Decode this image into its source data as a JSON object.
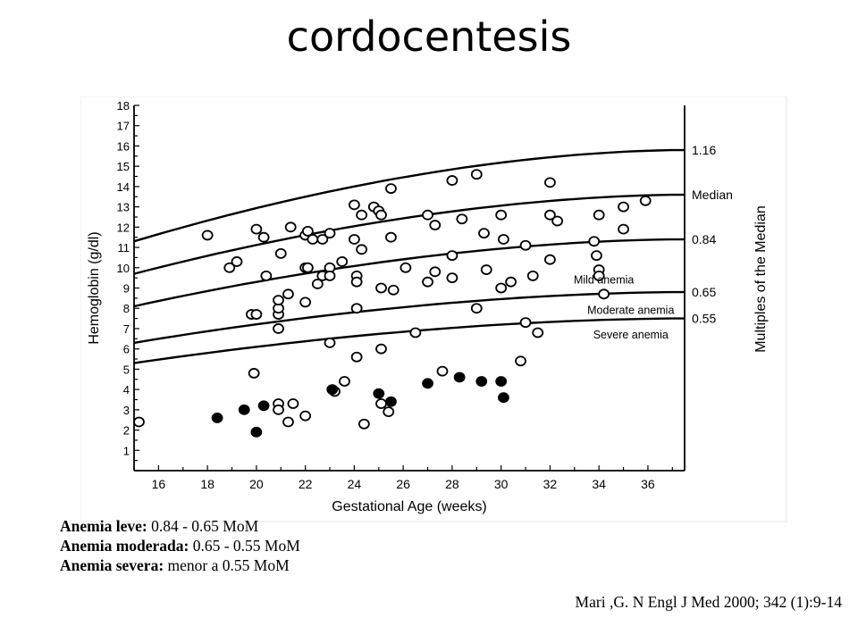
{
  "slide": {
    "title": "cordocentesis",
    "notes": [
      {
        "label": "Anemia leve:",
        "value": " 0.84 - 0.65 MoM"
      },
      {
        "label": "Anemia moderada:",
        "value": " 0.65 - 0.55 MoM"
      },
      {
        "label": "Anemia severa:",
        "value": " menor a 0.55 MoM"
      }
    ],
    "citation": "Mari ,G. N Engl J Med 2000; 342 (1):9-14"
  },
  "chart_data": {
    "type": "scatter",
    "xlabel": "Gestational Age (weeks)",
    "ylabel": "Hemoglobin (g/dl)",
    "y2label": "Multiples of the Median",
    "xlim": [
      15,
      37.5
    ],
    "ylim": [
      0,
      18
    ],
    "xticks": [
      16,
      18,
      20,
      22,
      24,
      26,
      28,
      30,
      32,
      34,
      36
    ],
    "yticks": [
      1,
      2,
      3,
      4,
      5,
      6,
      7,
      8,
      9,
      10,
      11,
      12,
      13,
      14,
      15,
      16,
      17,
      18
    ],
    "grid": false,
    "curves": [
      {
        "label": "1.16",
        "x": [
          15,
          37.5
        ],
        "y": [
          11.3,
          15.8
        ]
      },
      {
        "label": "Median",
        "x": [
          15,
          37.5
        ],
        "y": [
          9.7,
          13.6
        ]
      },
      {
        "label": "0.84",
        "x": [
          15,
          37.5
        ],
        "y": [
          8.1,
          11.4
        ]
      },
      {
        "label": "0.65",
        "x": [
          15,
          37.5
        ],
        "y": [
          6.3,
          8.8
        ]
      },
      {
        "label": "0.55",
        "x": [
          15,
          37.5
        ],
        "y": [
          5.3,
          7.5
        ]
      }
    ],
    "zone_labels": [
      {
        "text": "Mild anemia",
        "x": 34.2,
        "y": 9.4
      },
      {
        "text": "Moderate anemia",
        "x": 35.3,
        "y": 7.9
      },
      {
        "text": "Severe anemia",
        "x": 35.3,
        "y": 6.7
      }
    ],
    "series": [
      {
        "marker": "open",
        "points": [
          [
            15.2,
            2.4
          ],
          [
            18,
            11.6
          ],
          [
            18.9,
            10
          ],
          [
            19.2,
            10.3
          ],
          [
            19.8,
            7.7
          ],
          [
            19.9,
            4.8
          ],
          [
            20,
            7.7
          ],
          [
            20,
            11.9
          ],
          [
            20.3,
            11.5
          ],
          [
            20.4,
            9.6
          ],
          [
            20.9,
            3.3
          ],
          [
            20.9,
            3
          ],
          [
            20.9,
            7
          ],
          [
            20.9,
            7.7
          ],
          [
            20.9,
            8
          ],
          [
            20.9,
            8.4
          ],
          [
            21,
            10.7
          ],
          [
            21.3,
            8.7
          ],
          [
            21.3,
            2.4
          ],
          [
            21.4,
            12
          ],
          [
            21.5,
            3.3
          ],
          [
            22,
            2.7
          ],
          [
            22,
            8.3
          ],
          [
            22,
            10
          ],
          [
            22,
            11.6
          ],
          [
            22.1,
            11.8
          ],
          [
            22.1,
            10
          ],
          [
            22.3,
            11.4
          ],
          [
            22.5,
            9.2
          ],
          [
            22.7,
            11.4
          ],
          [
            22.7,
            9.6
          ],
          [
            23,
            11.7
          ],
          [
            23,
            10
          ],
          [
            23,
            9.6
          ],
          [
            23,
            6.3
          ],
          [
            23.2,
            3.9
          ],
          [
            23.5,
            10.3
          ],
          [
            23.6,
            4.4
          ],
          [
            24,
            13.1
          ],
          [
            24,
            11.4
          ],
          [
            24.1,
            9.6
          ],
          [
            24.1,
            9.3
          ],
          [
            24.1,
            8
          ],
          [
            24.1,
            5.6
          ],
          [
            24.3,
            12.6
          ],
          [
            24.3,
            10.9
          ],
          [
            24.4,
            2.3
          ],
          [
            24.8,
            13
          ],
          [
            25,
            12.8
          ],
          [
            25.1,
            12.6
          ],
          [
            25.1,
            9
          ],
          [
            25.1,
            6
          ],
          [
            25.1,
            3.3
          ],
          [
            25.4,
            2.9
          ],
          [
            25.5,
            13.9
          ],
          [
            25.5,
            11.5
          ],
          [
            25.6,
            8.9
          ],
          [
            26.1,
            10
          ],
          [
            26.5,
            6.8
          ],
          [
            27,
            12.6
          ],
          [
            27,
            9.3
          ],
          [
            27.3,
            12.1
          ],
          [
            27.3,
            9.8
          ],
          [
            27.6,
            4.9
          ],
          [
            28,
            14.3
          ],
          [
            28,
            10.6
          ],
          [
            28,
            9.5
          ],
          [
            28.4,
            12.4
          ],
          [
            29,
            14.6
          ],
          [
            29,
            8
          ],
          [
            29.3,
            11.7
          ],
          [
            29.4,
            9.9
          ],
          [
            30,
            12.6
          ],
          [
            30,
            9
          ],
          [
            30.1,
            11.4
          ],
          [
            30.4,
            9.3
          ],
          [
            30.8,
            5.4
          ],
          [
            31,
            7.3
          ],
          [
            31,
            11.1
          ],
          [
            31.3,
            9.6
          ],
          [
            31.5,
            6.8
          ],
          [
            32,
            14.2
          ],
          [
            32,
            12.6
          ],
          [
            32,
            10.4
          ],
          [
            32.3,
            12.3
          ],
          [
            33.8,
            11.3
          ],
          [
            33.9,
            10.6
          ],
          [
            34,
            12.6
          ],
          [
            34,
            9.9
          ],
          [
            34,
            9.6
          ],
          [
            34.2,
            8.7
          ],
          [
            35,
            13
          ],
          [
            35,
            11.9
          ],
          [
            35.9,
            13.3
          ]
        ]
      },
      {
        "marker": "filled",
        "points": [
          [
            18.4,
            2.6
          ],
          [
            19.5,
            3
          ],
          [
            20,
            1.9
          ],
          [
            20.3,
            3.2
          ],
          [
            23.1,
            4
          ],
          [
            25,
            3.8
          ],
          [
            25.5,
            3.4
          ],
          [
            27,
            4.3
          ],
          [
            28.3,
            4.6
          ],
          [
            29.2,
            4.4
          ],
          [
            30,
            4.4
          ],
          [
            30.1,
            3.6
          ]
        ]
      }
    ]
  }
}
